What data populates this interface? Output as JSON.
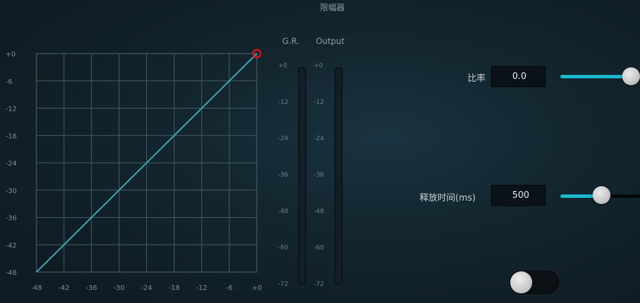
{
  "title": "限幅器",
  "meters": {
    "gr_label": "G.R.",
    "output_label": "Output",
    "scale": [
      "+0",
      "-12",
      "-24",
      "-36",
      "-48",
      "-60",
      "-72"
    ]
  },
  "graph": {
    "y_ticks": [
      "+0",
      "-6",
      "-12",
      "-18",
      "-24",
      "-30",
      "-36",
      "-42",
      "-48"
    ],
    "x_ticks": [
      "-48",
      "-42",
      "-36",
      "-30",
      "-24",
      "-18",
      "-12",
      "-6",
      "+0"
    ],
    "xlim": [
      -48,
      0
    ],
    "ylim": [
      -48,
      0
    ],
    "line_color": "#3fa9b6",
    "curve": [
      [
        -48,
        -48
      ],
      [
        0,
        0
      ]
    ],
    "handle": [
      0,
      0
    ],
    "handle_color": "#d8121f"
  },
  "params": {
    "ratio": {
      "label": "比率",
      "value": "0.0",
      "slider_fraction": 1.0
    },
    "release": {
      "label": "释放时间(ms)",
      "value": "500",
      "slider_fraction": 0.45
    }
  },
  "toggle": {
    "on": false
  },
  "colors": {
    "accent": "#18b9cc",
    "knob": "#cfcfcf"
  }
}
